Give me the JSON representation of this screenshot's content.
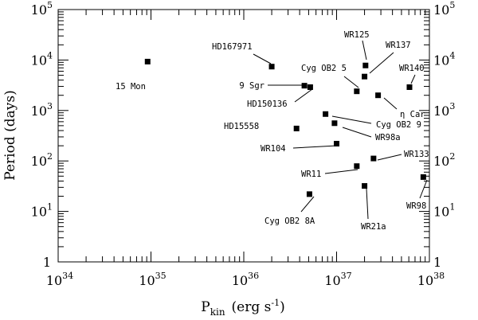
{
  "chart_data": {
    "type": "scatter",
    "title": "",
    "xlabel": "P_kin (erg s^-1)",
    "xlabel_parts": {
      "base": "P",
      "sub": "kin",
      "units": "(erg s",
      "units_exp": "-1",
      "units_close": ")"
    },
    "ylabel": "Period (days)",
    "xscale": "log",
    "yscale": "log",
    "xlim": [
      1e+34,
      1e+38
    ],
    "ylim": [
      1,
      100000
    ],
    "grid": false,
    "legend": "none",
    "x_ticks": [
      {
        "value": 1e+34,
        "base": "10",
        "exp": "34"
      },
      {
        "value": 1e+35,
        "base": "10",
        "exp": "35"
      },
      {
        "value": 1e+36,
        "base": "10",
        "exp": "36"
      },
      {
        "value": 1e+37,
        "base": "10",
        "exp": "37"
      },
      {
        "value": 1e+38,
        "base": "10",
        "exp": "38"
      }
    ],
    "y_ticks": [
      {
        "value": 1,
        "base": "1",
        "exp": ""
      },
      {
        "value": 10,
        "base": "10",
        "exp": "1"
      },
      {
        "value": 100,
        "base": "10",
        "exp": "2"
      },
      {
        "value": 1000,
        "base": "10",
        "exp": "3"
      },
      {
        "value": 10000,
        "base": "10",
        "exp": "4"
      },
      {
        "value": 100000,
        "base": "10",
        "exp": "5"
      }
    ],
    "points": [
      {
        "name": "15 Mon",
        "x": 9.2e+34,
        "y": 9300
      },
      {
        "name": "HD167971",
        "x": 2e+36,
        "y": 7400
      },
      {
        "name": "9 Sgr",
        "x": 4.5e+36,
        "y": 3100
      },
      {
        "name": "HD150136",
        "x": 5.2e+36,
        "y": 2900
      },
      {
        "name": "Cyg OB2 5",
        "x": 1.65e+37,
        "y": 2400
      },
      {
        "name": "WR125",
        "x": 2.05e+37,
        "y": 7800
      },
      {
        "name": "WR137",
        "x": 2e+37,
        "y": 4700
      },
      {
        "name": "WR140",
        "x": 6.1e+37,
        "y": 2900
      },
      {
        "name": "η Car",
        "x": 2.8e+37,
        "y": 2000
      },
      {
        "name": "Cyg OB2 9",
        "x": 7.6e+36,
        "y": 850
      },
      {
        "name": "WR98a",
        "x": 9.5e+36,
        "y": 560
      },
      {
        "name": "HD15558",
        "x": 3.7e+36,
        "y": 440
      },
      {
        "name": "WR104",
        "x": 1e+37,
        "y": 220
      },
      {
        "name": "WR133",
        "x": 2.5e+37,
        "y": 112
      },
      {
        "name": "WR11",
        "x": 1.65e+37,
        "y": 79
      },
      {
        "name": "WR98",
        "x": 8.6e+37,
        "y": 48
      },
      {
        "name": "WR21a",
        "x": 2e+37,
        "y": 32
      },
      {
        "name": "Cyg OB2 8A",
        "x": 5.1e+36,
        "y": 22
      }
    ]
  }
}
